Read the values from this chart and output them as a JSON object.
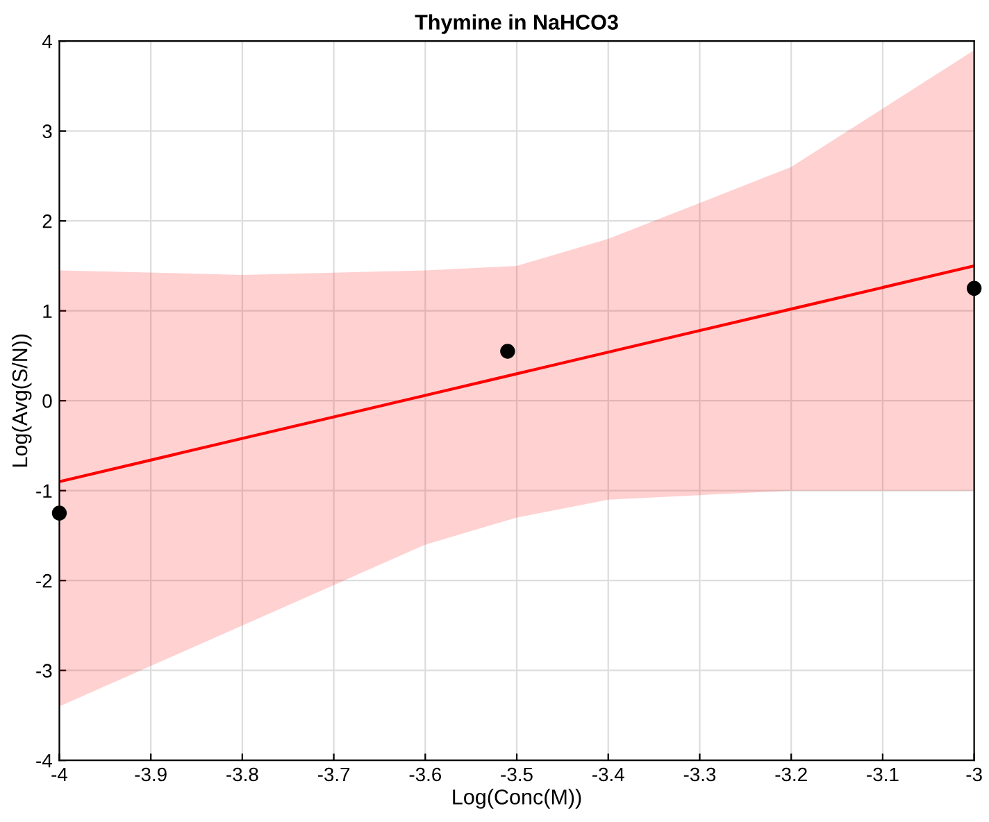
{
  "chart_data": {
    "type": "line",
    "title": "Thymine in NaHCO3",
    "xlabel": "Log(Conc(M))",
    "ylabel": "Log(Avg(S/N))",
    "xlim": [
      -4,
      -3
    ],
    "xticks": [
      -4,
      -3.9,
      -3.8,
      -3.7,
      -3.6,
      -3.5,
      -3.4,
      -3.3,
      -3.2,
      -3.1,
      -3
    ],
    "ylim": [
      -4,
      4
    ],
    "yticks": [
      -4,
      -3,
      -2,
      -1,
      0,
      1,
      2,
      3,
      4
    ],
    "grid": true,
    "series": [
      {
        "color": "#ff0000",
        "x": [
          -4,
          -3.8,
          -3.6,
          -3.5,
          -3.4,
          -3.2,
          -3
        ],
        "values": [
          -0.9,
          -0.42,
          0.06,
          0.3,
          0.54,
          1.02,
          1.5
        ],
        "lower": [
          -3.4,
          -2.5,
          -1.6,
          -1.3,
          -1.1,
          -1.0,
          -1.0
        ],
        "upper": [
          1.45,
          1.4,
          1.45,
          1.5,
          1.8,
          2.6,
          3.9
        ]
      },
      {
        "type": "scatter",
        "color": "#000000",
        "marker": "circle",
        "x": [
          -4,
          -3.51,
          -3
        ],
        "values": [
          -1.25,
          0.55,
          1.25
        ]
      }
    ]
  }
}
